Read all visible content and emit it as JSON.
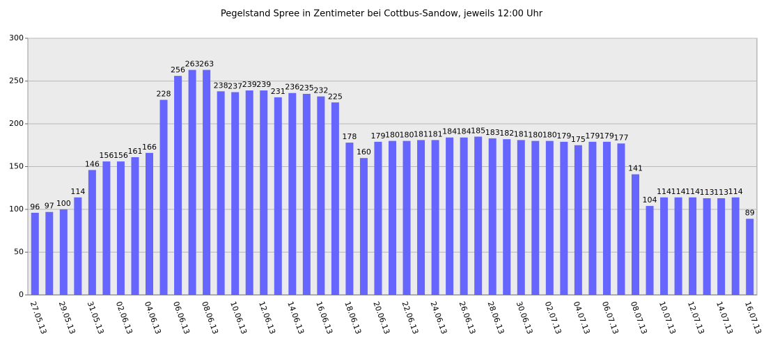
{
  "chart_data": {
    "type": "bar",
    "title": "Pegelstand Spree in Zentimeter bei Cottbus-Sandow, jeweils 12:00 Uhr",
    "categories": [
      "27.05.13",
      null,
      "29.05.13",
      null,
      "31.05.13",
      null,
      "02.06.13",
      null,
      "04.06.13",
      null,
      "06.06.13",
      null,
      "08.06.13",
      null,
      "10.06.13",
      null,
      "12.06.13",
      null,
      "14.06.13",
      null,
      "16.06.13",
      null,
      "18.06.13",
      null,
      "20.06.13",
      null,
      "22.06.13",
      null,
      "24.06.13",
      null,
      "26.06.13",
      null,
      "28.06.13",
      null,
      "30.06.13",
      null,
      "02.07.13",
      null,
      "04.07.13",
      null,
      "06.07.13",
      null,
      "08.07.13",
      null,
      "10.07.13",
      null,
      "12.07.13",
      null,
      "14.07.13",
      null,
      "16.07.13"
    ],
    "values": [
      96,
      97,
      100,
      114,
      146,
      156,
      156,
      161,
      166,
      228,
      256,
      263,
      263,
      238,
      237,
      239,
      239,
      231,
      236,
      235,
      232,
      225,
      178,
      160,
      179,
      180,
      180,
      181,
      181,
      184,
      184,
      185,
      183,
      182,
      181,
      180,
      180,
      179,
      175,
      179,
      179,
      177,
      141,
      104,
      114,
      114,
      114,
      113,
      113,
      114,
      89
    ],
    "color": "#6666ff",
    "ylim": [
      0,
      300
    ],
    "yticks": [
      0,
      50,
      100,
      150,
      200,
      250,
      300
    ],
    "grid": true
  }
}
